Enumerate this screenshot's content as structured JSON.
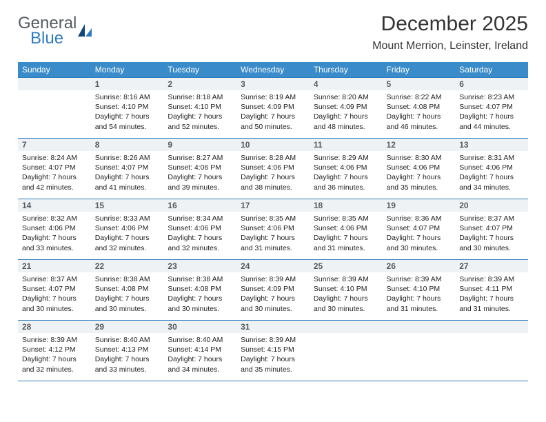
{
  "logo": {
    "line1": "General",
    "line2": "Blue"
  },
  "title": "December 2025",
  "location": "Mount Merrion, Leinster, Ireland",
  "weekdays": [
    "Sunday",
    "Monday",
    "Tuesday",
    "Wednesday",
    "Thursday",
    "Friday",
    "Saturday"
  ],
  "colors": {
    "header_bg": "#3a8bc9",
    "header_text": "#ffffff",
    "daynum_bg": "#eef2f5",
    "daynum_border": "#2f7bbf",
    "logo_gray": "#555b61",
    "logo_blue": "#2f7bbf"
  },
  "weeks": [
    [
      {
        "day": "",
        "sunrise": "",
        "sunset": "",
        "daylight": ""
      },
      {
        "day": "1",
        "sunrise": "Sunrise: 8:16 AM",
        "sunset": "Sunset: 4:10 PM",
        "daylight": "Daylight: 7 hours and 54 minutes."
      },
      {
        "day": "2",
        "sunrise": "Sunrise: 8:18 AM",
        "sunset": "Sunset: 4:10 PM",
        "daylight": "Daylight: 7 hours and 52 minutes."
      },
      {
        "day": "3",
        "sunrise": "Sunrise: 8:19 AM",
        "sunset": "Sunset: 4:09 PM",
        "daylight": "Daylight: 7 hours and 50 minutes."
      },
      {
        "day": "4",
        "sunrise": "Sunrise: 8:20 AM",
        "sunset": "Sunset: 4:09 PM",
        "daylight": "Daylight: 7 hours and 48 minutes."
      },
      {
        "day": "5",
        "sunrise": "Sunrise: 8:22 AM",
        "sunset": "Sunset: 4:08 PM",
        "daylight": "Daylight: 7 hours and 46 minutes."
      },
      {
        "day": "6",
        "sunrise": "Sunrise: 8:23 AM",
        "sunset": "Sunset: 4:07 PM",
        "daylight": "Daylight: 7 hours and 44 minutes."
      }
    ],
    [
      {
        "day": "7",
        "sunrise": "Sunrise: 8:24 AM",
        "sunset": "Sunset: 4:07 PM",
        "daylight": "Daylight: 7 hours and 42 minutes."
      },
      {
        "day": "8",
        "sunrise": "Sunrise: 8:26 AM",
        "sunset": "Sunset: 4:07 PM",
        "daylight": "Daylight: 7 hours and 41 minutes."
      },
      {
        "day": "9",
        "sunrise": "Sunrise: 8:27 AM",
        "sunset": "Sunset: 4:06 PM",
        "daylight": "Daylight: 7 hours and 39 minutes."
      },
      {
        "day": "10",
        "sunrise": "Sunrise: 8:28 AM",
        "sunset": "Sunset: 4:06 PM",
        "daylight": "Daylight: 7 hours and 38 minutes."
      },
      {
        "day": "11",
        "sunrise": "Sunrise: 8:29 AM",
        "sunset": "Sunset: 4:06 PM",
        "daylight": "Daylight: 7 hours and 36 minutes."
      },
      {
        "day": "12",
        "sunrise": "Sunrise: 8:30 AM",
        "sunset": "Sunset: 4:06 PM",
        "daylight": "Daylight: 7 hours and 35 minutes."
      },
      {
        "day": "13",
        "sunrise": "Sunrise: 8:31 AM",
        "sunset": "Sunset: 4:06 PM",
        "daylight": "Daylight: 7 hours and 34 minutes."
      }
    ],
    [
      {
        "day": "14",
        "sunrise": "Sunrise: 8:32 AM",
        "sunset": "Sunset: 4:06 PM",
        "daylight": "Daylight: 7 hours and 33 minutes."
      },
      {
        "day": "15",
        "sunrise": "Sunrise: 8:33 AM",
        "sunset": "Sunset: 4:06 PM",
        "daylight": "Daylight: 7 hours and 32 minutes."
      },
      {
        "day": "16",
        "sunrise": "Sunrise: 8:34 AM",
        "sunset": "Sunset: 4:06 PM",
        "daylight": "Daylight: 7 hours and 32 minutes."
      },
      {
        "day": "17",
        "sunrise": "Sunrise: 8:35 AM",
        "sunset": "Sunset: 4:06 PM",
        "daylight": "Daylight: 7 hours and 31 minutes."
      },
      {
        "day": "18",
        "sunrise": "Sunrise: 8:35 AM",
        "sunset": "Sunset: 4:06 PM",
        "daylight": "Daylight: 7 hours and 31 minutes."
      },
      {
        "day": "19",
        "sunrise": "Sunrise: 8:36 AM",
        "sunset": "Sunset: 4:07 PM",
        "daylight": "Daylight: 7 hours and 30 minutes."
      },
      {
        "day": "20",
        "sunrise": "Sunrise: 8:37 AM",
        "sunset": "Sunset: 4:07 PM",
        "daylight": "Daylight: 7 hours and 30 minutes."
      }
    ],
    [
      {
        "day": "21",
        "sunrise": "Sunrise: 8:37 AM",
        "sunset": "Sunset: 4:07 PM",
        "daylight": "Daylight: 7 hours and 30 minutes."
      },
      {
        "day": "22",
        "sunrise": "Sunrise: 8:38 AM",
        "sunset": "Sunset: 4:08 PM",
        "daylight": "Daylight: 7 hours and 30 minutes."
      },
      {
        "day": "23",
        "sunrise": "Sunrise: 8:38 AM",
        "sunset": "Sunset: 4:08 PM",
        "daylight": "Daylight: 7 hours and 30 minutes."
      },
      {
        "day": "24",
        "sunrise": "Sunrise: 8:39 AM",
        "sunset": "Sunset: 4:09 PM",
        "daylight": "Daylight: 7 hours and 30 minutes."
      },
      {
        "day": "25",
        "sunrise": "Sunrise: 8:39 AM",
        "sunset": "Sunset: 4:10 PM",
        "daylight": "Daylight: 7 hours and 30 minutes."
      },
      {
        "day": "26",
        "sunrise": "Sunrise: 8:39 AM",
        "sunset": "Sunset: 4:10 PM",
        "daylight": "Daylight: 7 hours and 31 minutes."
      },
      {
        "day": "27",
        "sunrise": "Sunrise: 8:39 AM",
        "sunset": "Sunset: 4:11 PM",
        "daylight": "Daylight: 7 hours and 31 minutes."
      }
    ],
    [
      {
        "day": "28",
        "sunrise": "Sunrise: 8:39 AM",
        "sunset": "Sunset: 4:12 PM",
        "daylight": "Daylight: 7 hours and 32 minutes."
      },
      {
        "day": "29",
        "sunrise": "Sunrise: 8:40 AM",
        "sunset": "Sunset: 4:13 PM",
        "daylight": "Daylight: 7 hours and 33 minutes."
      },
      {
        "day": "30",
        "sunrise": "Sunrise: 8:40 AM",
        "sunset": "Sunset: 4:14 PM",
        "daylight": "Daylight: 7 hours and 34 minutes."
      },
      {
        "day": "31",
        "sunrise": "Sunrise: 8:39 AM",
        "sunset": "Sunset: 4:15 PM",
        "daylight": "Daylight: 7 hours and 35 minutes."
      },
      {
        "day": "",
        "sunrise": "",
        "sunset": "",
        "daylight": ""
      },
      {
        "day": "",
        "sunrise": "",
        "sunset": "",
        "daylight": ""
      },
      {
        "day": "",
        "sunrise": "",
        "sunset": "",
        "daylight": ""
      }
    ]
  ]
}
